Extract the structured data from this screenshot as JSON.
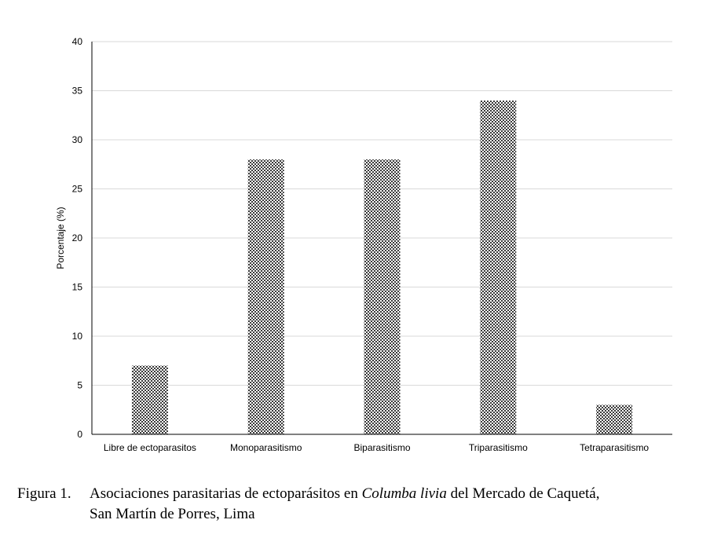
{
  "chart_data": {
    "type": "bar",
    "categories": [
      "Libre de ectoparasitos",
      "Monoparasitismo",
      "Biparasitismo",
      "Triparasitismo",
      "Tetraparasitismo"
    ],
    "values": [
      7,
      28,
      28,
      34,
      3
    ],
    "ylabel": "Porcentaje (%)",
    "xlabel": "",
    "ylim": [
      0,
      40
    ],
    "yticks": [
      0,
      5,
      10,
      15,
      20,
      25,
      30,
      35,
      40
    ],
    "grid": true,
    "bar_fill": "checkered-gray"
  },
  "caption": {
    "label": "Figura 1.",
    "text_before": "Asociaciones parasitarias de ectoparásitos en ",
    "species": "Columba livia",
    "text_after": " del Mercado de Caquetá,",
    "line2": "San Martín de Porres, Lima"
  }
}
